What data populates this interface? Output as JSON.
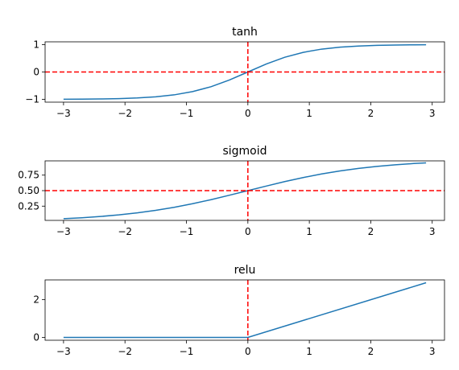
{
  "chart_data": [
    {
      "type": "line",
      "title": "tanh",
      "xlabel": "",
      "ylabel": "",
      "xlim": [
        -3.3,
        3.2
      ],
      "ylim": [
        -1.1,
        1.1
      ],
      "xticks": [
        -3,
        -2,
        -1,
        0,
        1,
        2,
        3
      ],
      "xtick_labels": [
        "−3",
        "−2",
        "−1",
        "0",
        "1",
        "2",
        "3"
      ],
      "yticks": [
        -1,
        0,
        1
      ],
      "ytick_labels": [
        "−1",
        "0",
        "1"
      ],
      "function": "tanh",
      "x": [
        -3.0,
        -2.7,
        -2.4,
        -2.1,
        -1.8,
        -1.5,
        -1.2,
        -0.9,
        -0.6,
        -0.3,
        0.0,
        0.3,
        0.6,
        0.9,
        1.2,
        1.5,
        1.8,
        2.1,
        2.4,
        2.7,
        2.9
      ],
      "y": [
        -0.995,
        -0.991,
        -0.984,
        -0.97,
        -0.947,
        -0.905,
        -0.834,
        -0.716,
        -0.537,
        -0.291,
        0.0,
        0.291,
        0.537,
        0.716,
        0.834,
        0.905,
        0.947,
        0.97,
        0.984,
        0.991,
        0.994
      ],
      "line_color": "#1f77b4",
      "reference_lines": {
        "vertical_x": 0,
        "horizontal_y": 0,
        "color": "#ff0000",
        "style": "dashed"
      }
    },
    {
      "type": "line",
      "title": "sigmoid",
      "xlabel": "",
      "ylabel": "",
      "xlim": [
        -3.3,
        3.2
      ],
      "ylim": [
        0.02,
        0.98
      ],
      "xticks": [
        -3,
        -2,
        -1,
        0,
        1,
        2,
        3
      ],
      "xtick_labels": [
        "−3",
        "−2",
        "−1",
        "0",
        "1",
        "2",
        "3"
      ],
      "yticks": [
        0.25,
        0.5,
        0.75
      ],
      "ytick_labels": [
        "0.25",
        "0.50",
        "0.75"
      ],
      "function": "sigmoid",
      "x": [
        -3.0,
        -2.7,
        -2.4,
        -2.1,
        -1.8,
        -1.5,
        -1.2,
        -0.9,
        -0.6,
        -0.3,
        0.0,
        0.3,
        0.6,
        0.9,
        1.2,
        1.5,
        1.8,
        2.1,
        2.4,
        2.7,
        2.9
      ],
      "y": [
        0.047,
        0.063,
        0.083,
        0.109,
        0.142,
        0.182,
        0.231,
        0.289,
        0.354,
        0.426,
        0.5,
        0.574,
        0.646,
        0.711,
        0.769,
        0.818,
        0.858,
        0.891,
        0.917,
        0.937,
        0.948
      ],
      "line_color": "#1f77b4",
      "reference_lines": {
        "vertical_x": 0,
        "horizontal_y": 0.5,
        "color": "#ff0000",
        "style": "dashed"
      }
    },
    {
      "type": "line",
      "title": "relu",
      "xlabel": "",
      "ylabel": "",
      "xlim": [
        -3.3,
        3.2
      ],
      "ylim": [
        -0.15,
        3.05
      ],
      "xticks": [
        -3,
        -2,
        -1,
        0,
        1,
        2,
        3
      ],
      "xtick_labels": [
        "−3",
        "−2",
        "−1",
        "0",
        "1",
        "2",
        "3"
      ],
      "yticks": [
        0,
        2
      ],
      "ytick_labels": [
        "0",
        "2"
      ],
      "function": "relu",
      "x": [
        -3.0,
        0.0,
        2.9
      ],
      "y": [
        0.0,
        0.0,
        2.9
      ],
      "line_color": "#1f77b4",
      "reference_lines": {
        "vertical_x": 0,
        "color": "#ff0000",
        "style": "dashed"
      }
    }
  ]
}
